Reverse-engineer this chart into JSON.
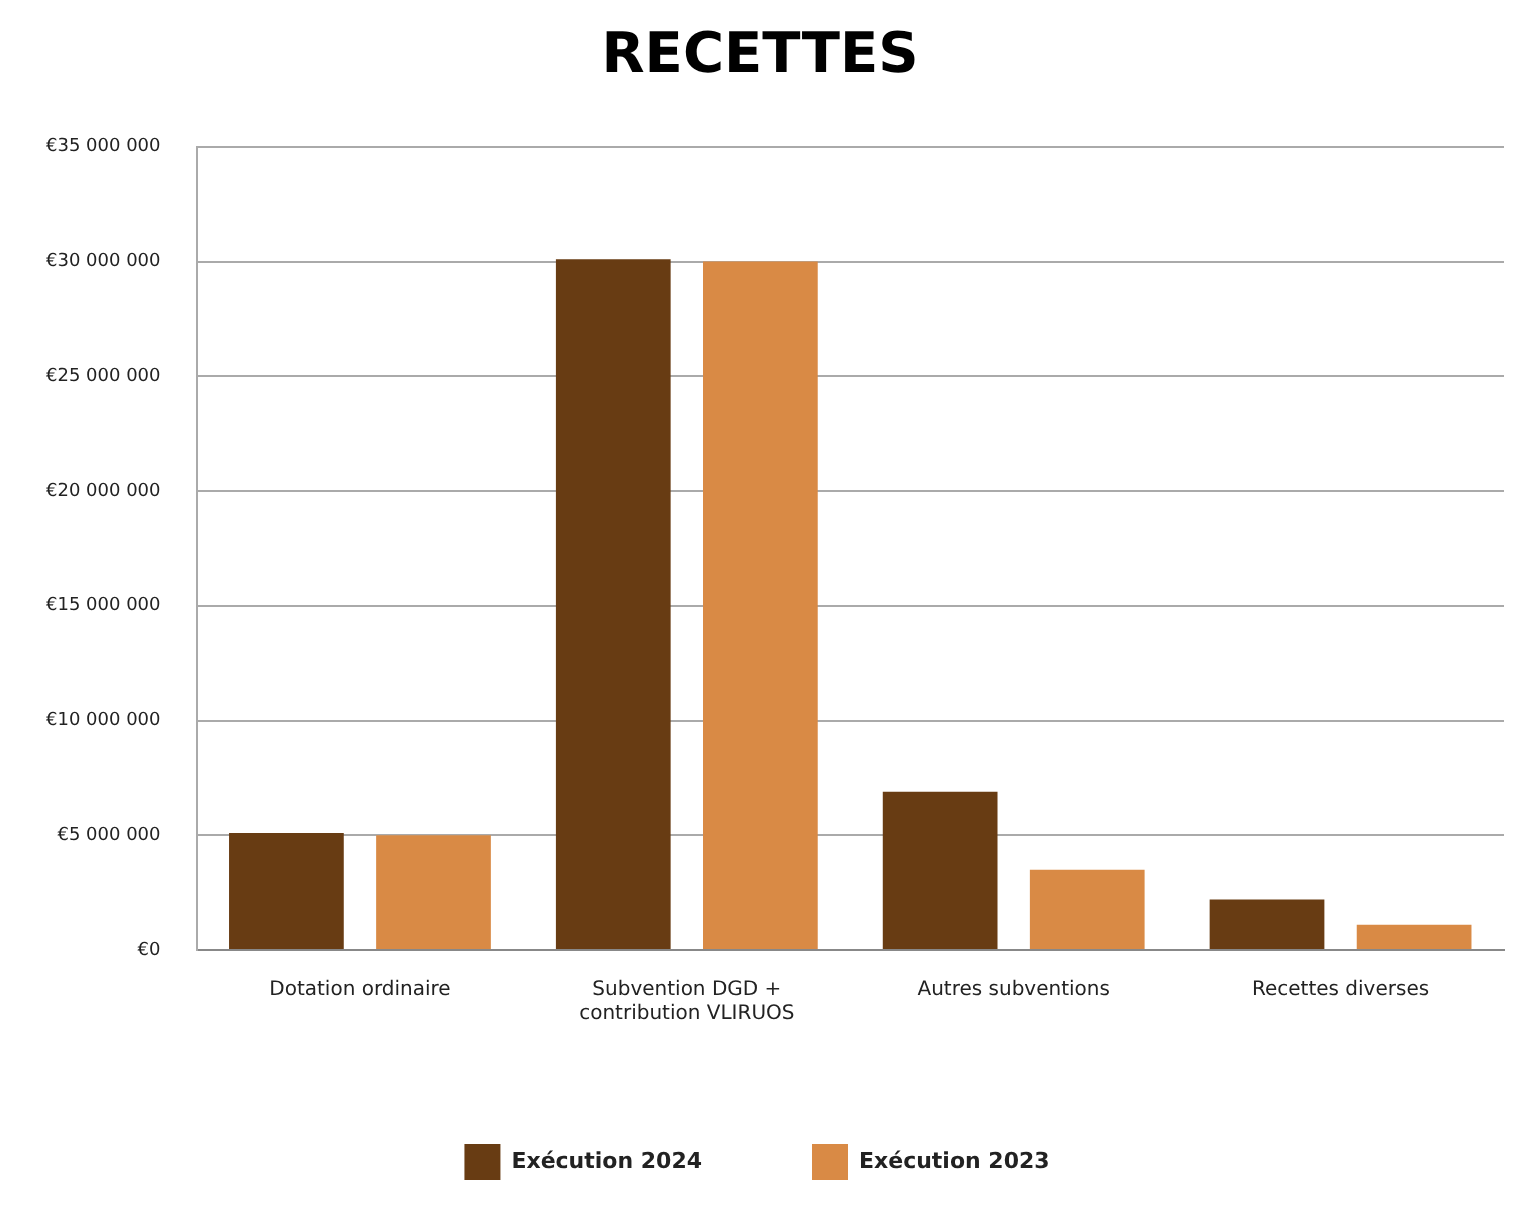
{
  "chart_data": {
    "type": "bar",
    "title": "RECETTES",
    "categories": [
      "Dotation ordinaire",
      "Subvention DGD + contribution VLIRUOS",
      "Autres subventions",
      "Recettes diverses"
    ],
    "series": [
      {
        "name": "Exécution 2024",
        "color": "#683c13",
        "values": [
          5100000,
          30100000,
          6900000,
          2200000
        ]
      },
      {
        "name": "Exécution 2023",
        "color": "#d98a45",
        "values": [
          5000000,
          30000000,
          3500000,
          1100000
        ]
      }
    ],
    "ylim": [
      0,
      35000000
    ],
    "yticks": [
      {
        "value": 0,
        "label": "€0"
      },
      {
        "value": 5000000,
        "label": "€5 000 000"
      },
      {
        "value": 10000000,
        "label": "€10 000 000"
      },
      {
        "value": 15000000,
        "label": "€15 000 000"
      },
      {
        "value": 20000000,
        "label": "€20 000 000"
      },
      {
        "value": 25000000,
        "label": "€25 000 000"
      },
      {
        "value": 30000000,
        "label": "€30 000 000"
      },
      {
        "value": 35000000,
        "label": "€35 000 000"
      }
    ],
    "grid": "y",
    "legend": "bottom"
  }
}
